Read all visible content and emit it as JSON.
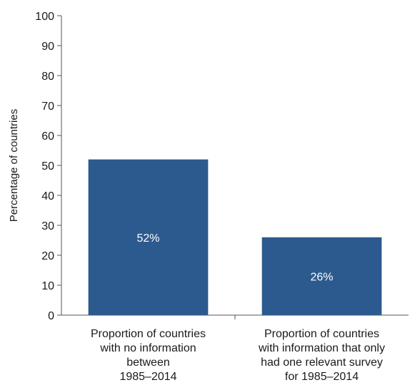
{
  "chart_data": {
    "type": "bar",
    "ylabel": "Percentage of countries",
    "xlabel": "",
    "ylim": [
      0,
      100
    ],
    "yticks": [
      0,
      10,
      20,
      30,
      40,
      50,
      60,
      70,
      80,
      90,
      100
    ],
    "grid": false,
    "categories": [
      [
        "Proportion of countries",
        "with no information",
        "between",
        "1985–2014"
      ],
      [
        "Proportion of countries",
        "with information that only",
        "had one relevant survey",
        "for 1985–2014"
      ]
    ],
    "values": [
      52,
      26
    ],
    "data_labels": [
      "52%",
      "26%"
    ],
    "bar_color": "#2d5a8e",
    "label_color": "#ffffff"
  }
}
